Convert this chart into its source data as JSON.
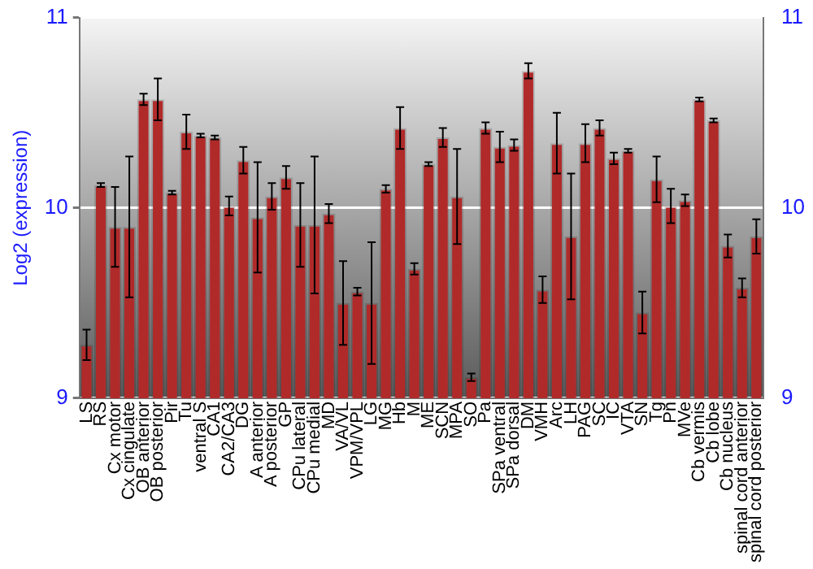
{
  "chart_data": {
    "type": "bar",
    "ylabel": "Log2 (expression)",
    "categories": [
      "LS",
      "RS",
      "Cx motor",
      "Cx cingulate",
      "OB anterior",
      "OB posterior",
      "Pir",
      "Tu",
      "ventral S",
      "CA1",
      "CA2/CA3",
      "DG",
      "A anterior",
      "A posterior",
      "GP",
      "CPu lateral",
      "CPu medial",
      "MD",
      "VA/VL",
      "VPM/VPL",
      "LG",
      "MG",
      "Hb",
      "M",
      "ME",
      "SCN",
      "MPA",
      "SO",
      "Pa",
      "SPa ventral",
      "SPa dorsal",
      "DM",
      "VMH",
      "Arc",
      "LH",
      "PAG",
      "SC",
      "IC",
      "VTA",
      "SN",
      "Tg",
      "Pn",
      "MVe",
      "Cb vermis",
      "Cb lobe",
      "Cb nucleus",
      "spinal cord anterior",
      "spinal cord posterior"
    ],
    "series": [
      {
        "color": "#b02a2a",
        "values": [
          9.28,
          10.12,
          9.9,
          9.9,
          10.57,
          10.57,
          10.08,
          10.4,
          10.38,
          10.37,
          10.01,
          10.25,
          9.95,
          10.06,
          10.16,
          9.91,
          9.91,
          9.97,
          9.5,
          9.56,
          9.5,
          10.1,
          10.42,
          9.68,
          10.23,
          10.37,
          10.06,
          9.11,
          10.42,
          10.32,
          10.33,
          10.72,
          9.57,
          10.34,
          9.85,
          10.34,
          10.42,
          10.26,
          10.3,
          9.45,
          10.15,
          10.01,
          10.04,
          10.57,
          10.46,
          9.8,
          9.58,
          9.85
        ],
        "errors": [
          0.08,
          0.01,
          0.21,
          0.37,
          0.03,
          0.11,
          0.01,
          0.09,
          0.01,
          0.01,
          0.05,
          0.07,
          0.29,
          0.07,
          0.06,
          0.22,
          0.36,
          0.05,
          0.22,
          0.02,
          0.32,
          0.02,
          0.11,
          0.03,
          0.01,
          0.05,
          0.25,
          0.02,
          0.03,
          0.08,
          0.03,
          0.04,
          0.07,
          0.16,
          0.33,
          0.1,
          0.04,
          0.03,
          0.01,
          0.11,
          0.12,
          0.09,
          0.03,
          0.01,
          0.01,
          0.06,
          0.05,
          0.09
        ]
      }
    ],
    "ylim": [
      9,
      11
    ],
    "yticks": [
      9,
      10,
      11
    ],
    "y2lim": [
      9,
      11
    ],
    "y2ticks": [
      9,
      10,
      11
    ],
    "grid": "y",
    "legend": false
  }
}
